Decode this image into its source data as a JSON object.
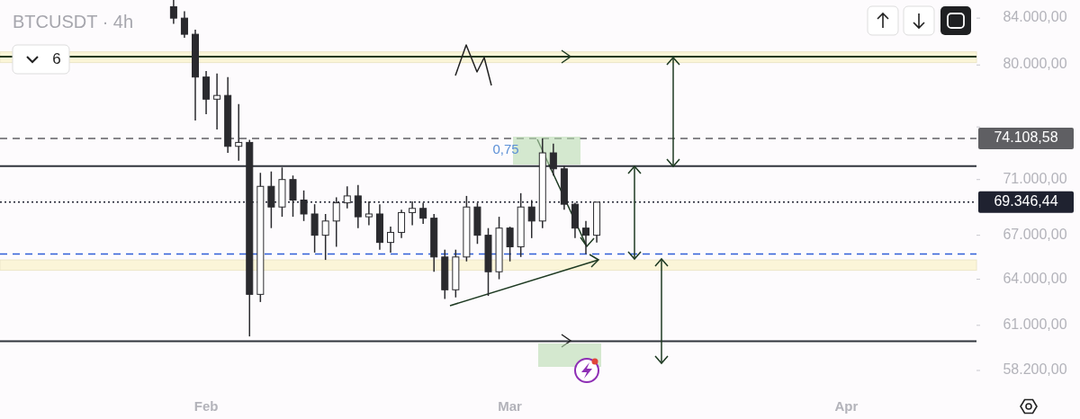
{
  "chart_data": {
    "type": "candlestick",
    "title": "BTCUSDT · 4h",
    "color": "#2a2a2e",
    "x": [
      "--01-29",
      "--01-30",
      "--01-31",
      "--02-01",
      "--02-02",
      "--02-03",
      "--02-04",
      "--02-05",
      "--02-06",
      "--02-07",
      "--02-08",
      "--02-09",
      "--02-10",
      "--02-11",
      "--02-12",
      "--02-13",
      "--02-14",
      "--02-15",
      "--02-16",
      "--02-17",
      "--02-18",
      "--02-19",
      "--02-20",
      "--02-21",
      "--02-22",
      "--02-23",
      "--02-24",
      "--02-25",
      "--02-26",
      "--02-27",
      "--02-28",
      "--03-01",
      "--03-02",
      "--03-03",
      "--03-04",
      "--03-05",
      "--03-06",
      "--03-07",
      "--03-08",
      "--03-09"
    ],
    "ohlc": [
      [
        85000,
        85600,
        83500,
        84000
      ],
      [
        84000,
        84600,
        82300,
        82600
      ],
      [
        82600,
        83000,
        75500,
        79000
      ],
      [
        79000,
        79500,
        76000,
        77200
      ],
      [
        77200,
        79300,
        74800,
        77500
      ],
      [
        77500,
        79000,
        73000,
        73500
      ],
      [
        73500,
        76800,
        72400,
        73800
      ],
      [
        73800,
        74000,
        60300,
        63000
      ],
      [
        63000,
        71500,
        62500,
        70500
      ],
      [
        70500,
        71600,
        67500,
        69000
      ],
      [
        69000,
        71900,
        68300,
        71000
      ],
      [
        71000,
        71300,
        68300,
        69500
      ],
      [
        69500,
        70200,
        68000,
        68500
      ],
      [
        68500,
        69200,
        65800,
        67000
      ],
      [
        67000,
        68500,
        65300,
        68000
      ],
      [
        68000,
        69700,
        66200,
        69300
      ],
      [
        69300,
        70500,
        68900,
        69800
      ],
      [
        69800,
        70600,
        67500,
        68300
      ],
      [
        68300,
        69400,
        67700,
        68500
      ],
      [
        68500,
        69200,
        66000,
        66500
      ],
      [
        66500,
        67600,
        65800,
        67200
      ],
      [
        67200,
        68800,
        66800,
        68600
      ],
      [
        68600,
        69400,
        67700,
        68900
      ],
      [
        68900,
        69300,
        67800,
        68200
      ],
      [
        68200,
        68500,
        64500,
        65500
      ],
      [
        65500,
        66000,
        62700,
        63300
      ],
      [
        63300,
        66000,
        62800,
        65500
      ],
      [
        65500,
        69800,
        65200,
        69000
      ],
      [
        69000,
        69300,
        66400,
        67000
      ],
      [
        67000,
        67500,
        62900,
        64500
      ],
      [
        64500,
        68300,
        64000,
        67500
      ],
      [
        67500,
        67600,
        65200,
        66200
      ],
      [
        66200,
        70000,
        65500,
        69000
      ],
      [
        69000,
        69500,
        66800,
        68000
      ],
      [
        68000,
        74100,
        67500,
        73000
      ],
      [
        73000,
        73700,
        71300,
        71800
      ],
      [
        71800,
        72000,
        68800,
        69200
      ],
      [
        69200,
        69300,
        66800,
        67500
      ],
      [
        67500,
        68000,
        65700,
        67000
      ],
      [
        67000,
        69350,
        66500,
        69346.44
      ]
    ],
    "log": "y",
    "ylim": [
      58200,
      85600
    ],
    "yticks": [
      {
        "value": 58200,
        "label": "58.200,00"
      },
      {
        "value": 61000,
        "label": "61.000,00"
      },
      {
        "value": 64000,
        "label": "64.000,00"
      },
      {
        "value": 67000,
        "label": "67.000,00"
      },
      {
        "value": 71000,
        "label": "71.000,00"
      },
      {
        "value": 75000,
        "label": null
      },
      {
        "value": 80000,
        "label": "80.000,00"
      },
      {
        "value": 84000,
        "label": "84.000,00"
      }
    ],
    "xlim": [
      "--01-13",
      "--04-13"
    ],
    "xticks": [
      {
        "value": "--02-01",
        "label": "Feb"
      },
      {
        "value": "--03-01",
        "label": "Mar"
      },
      {
        "value": "--04-01",
        "label": "Apr"
      }
    ],
    "grid": false,
    "bands": [
      {
        "axis": "y",
        "from": 80200,
        "to": 81100,
        "color": "#fbf5d8"
      },
      {
        "axis": "y",
        "from": 64600,
        "to": 65300,
        "color": "#fbf5d8"
      }
    ],
    "ref_lines": [
      {
        "axis": "y",
        "value": 80700,
        "color": "#1e3a22",
        "line_style": "solid"
      },
      {
        "axis": "y",
        "value": 74108.58,
        "label": "74.108,58",
        "color": "#5f5f63",
        "line_style": "dashed"
      },
      {
        "axis": "y",
        "value": 72000,
        "color": "#30343c",
        "line_style": "solid"
      },
      {
        "axis": "y",
        "value": 69346.44,
        "label": "69.346,44",
        "color": "#1f2230",
        "line_style": "dotted"
      },
      {
        "axis": "y",
        "value": 65700,
        "color": "#2f5ed8",
        "line_style": "dashed"
      },
      {
        "axis": "y",
        "value": 60000,
        "color": "#30343c",
        "line_style": "solid"
      }
    ],
    "annotations": [
      "6",
      "0,75"
    ]
  }
}
